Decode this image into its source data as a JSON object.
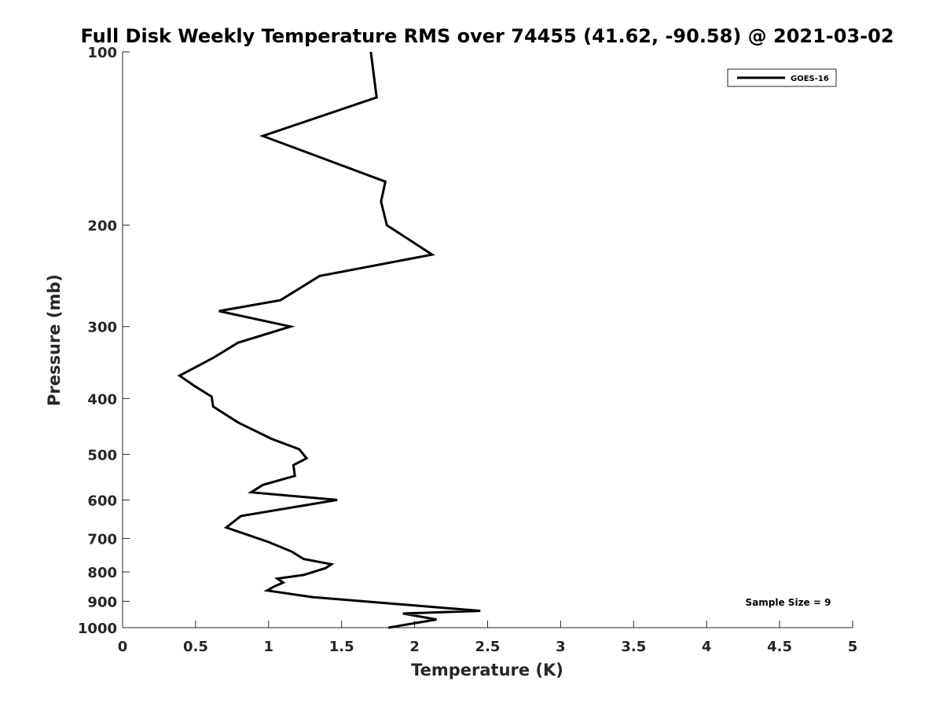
{
  "chart_data": {
    "type": "line",
    "title": "Full Disk Weekly Temperature RMS over 74455 (41.62, -90.58) @ 2021-03-02",
    "xlabel": "Temperature (K)",
    "ylabel": "Pressure (mb)",
    "xlim": [
      0,
      5
    ],
    "ylim": [
      100,
      1000
    ],
    "y_scale": "log",
    "y_reversed": true,
    "grid": false,
    "legend_position": "top-right",
    "x_ticks": [
      "0",
      "0.5",
      "1",
      "1.5",
      "2",
      "2.5",
      "3",
      "3.5",
      "4",
      "4.5",
      "5"
    ],
    "y_ticks": [
      "100",
      "200",
      "300",
      "400",
      "500",
      "600",
      "700",
      "800",
      "900",
      "1000"
    ],
    "annotation": "Sample Size = 9",
    "series": [
      {
        "name": "GOES-16",
        "color": "#000000",
        "x": [
          1.7,
          1.74,
          0.96,
          1.8,
          1.77,
          1.81,
          2.12,
          1.35,
          1.08,
          0.66,
          1.15,
          0.79,
          0.62,
          0.39,
          0.49,
          0.61,
          0.62,
          0.79,
          1.02,
          1.21,
          1.26,
          1.17,
          1.18,
          0.96,
          0.88,
          1.47,
          0.81,
          0.71,
          0.82,
          1.0,
          1.16,
          1.24,
          1.43,
          1.39,
          1.24,
          1.06,
          1.1,
          1.04,
          0.99,
          1.3,
          2.45,
          1.92,
          2.15,
          1.82
        ],
        "y": [
          100,
          120,
          140,
          168,
          182,
          200,
          225,
          245,
          270,
          282,
          300,
          320,
          340,
          365,
          380,
          397,
          413,
          440,
          470,
          490,
          508,
          522,
          545,
          565,
          582,
          600,
          640,
          670,
          685,
          710,
          738,
          760,
          776,
          788,
          810,
          822,
          835,
          848,
          862,
          885,
          935,
          945,
          968,
          1000
        ]
      }
    ]
  }
}
